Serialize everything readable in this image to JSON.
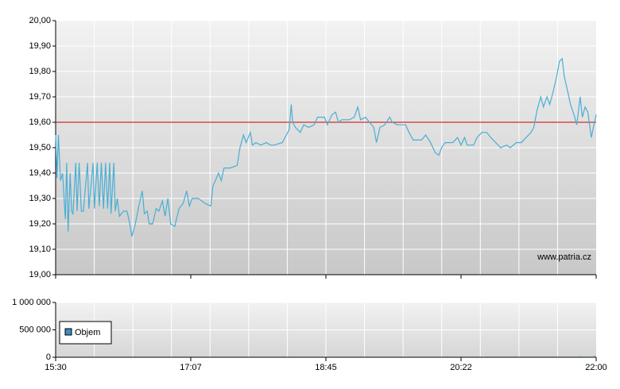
{
  "chart_data": [
    {
      "type": "line",
      "xlim": [
        930,
        1320
      ],
      "ylim": [
        19.0,
        20.0
      ],
      "yticks": [
        {
          "value": 19.0,
          "label": "19,00"
        },
        {
          "value": 19.1,
          "label": "19,10"
        },
        {
          "value": 19.2,
          "label": "19,20"
        },
        {
          "value": 19.3,
          "label": "19,30"
        },
        {
          "value": 19.4,
          "label": "19,40"
        },
        {
          "value": 19.5,
          "label": "19,50"
        },
        {
          "value": 19.6,
          "label": "19,60"
        },
        {
          "value": 19.7,
          "label": "19,70"
        },
        {
          "value": 19.8,
          "label": "19,80"
        },
        {
          "value": 19.9,
          "label": "19,90"
        },
        {
          "value": 20.0,
          "label": "20,00"
        }
      ],
      "xticks": [
        930,
        1027.5,
        1125,
        1222.5,
        1320
      ],
      "grid": true,
      "reference": 19.6,
      "reference_color": "#cc0000",
      "watermark": "www.patria.cz",
      "color": "#4aaed4",
      "x": [
        930,
        931,
        932,
        933.5,
        935,
        937,
        938,
        939,
        940.5,
        941.5,
        942.5,
        944.5,
        945.5,
        947,
        948.5,
        950,
        953,
        954,
        957,
        958,
        960,
        961.5,
        963,
        964.5,
        966,
        967.5,
        969,
        970,
        972,
        973,
        974.5,
        976,
        979,
        981.5,
        983.5,
        985,
        987.5,
        990,
        992.5,
        994,
        996,
        997.5,
        1000,
        1002.5,
        1004.5,
        1007,
        1009,
        1011,
        1013,
        1016,
        1019,
        1022,
        1024.5,
        1026.5,
        1028.5,
        1033,
        1038,
        1042,
        1043.5,
        1046,
        1047.5,
        1049.5,
        1051.5,
        1056,
        1061,
        1063,
        1065.5,
        1067.5,
        1070.5,
        1072,
        1074.5,
        1078,
        1082,
        1085,
        1087.5,
        1093.5,
        1096.5,
        1098.5,
        1100,
        1101,
        1103,
        1106.5,
        1109,
        1112.5,
        1116.5,
        1119,
        1124,
        1126,
        1129.5,
        1132,
        1134,
        1136.5,
        1142,
        1145.5,
        1148,
        1150,
        1153.5,
        1156.5,
        1159.5,
        1161.5,
        1164,
        1167.5,
        1171,
        1173,
        1176.5,
        1182.5,
        1185,
        1188,
        1194,
        1197,
        1200.5,
        1204,
        1206.5,
        1208.5,
        1211,
        1216.5,
        1220,
        1222.5,
        1225,
        1227,
        1231.5,
        1234,
        1237.5,
        1241,
        1244,
        1247.5,
        1251,
        1255.5,
        1258,
        1262.5,
        1266,
        1269.5,
        1273,
        1275,
        1277.5,
        1280,
        1282,
        1284.5,
        1286.5,
        1289,
        1291.5,
        1293.5,
        1295.5,
        1297,
        1299.5,
        1301.5,
        1304,
        1306,
        1308.5,
        1310,
        1312,
        1314,
        1316.5,
        1318,
        1320
      ],
      "values": [
        19.55,
        19.38,
        19.55,
        19.37,
        19.4,
        19.22,
        19.44,
        19.17,
        19.4,
        19.25,
        19.24,
        19.44,
        19.25,
        19.44,
        19.25,
        19.25,
        19.44,
        19.26,
        19.44,
        19.26,
        19.44,
        19.27,
        19.44,
        19.26,
        19.44,
        19.26,
        19.44,
        19.24,
        19.44,
        19.25,
        19.3,
        19.23,
        19.25,
        19.25,
        19.2,
        19.15,
        19.2,
        19.27,
        19.33,
        19.24,
        19.25,
        19.2,
        19.2,
        19.26,
        19.25,
        19.29,
        19.23,
        19.3,
        19.2,
        19.19,
        19.26,
        19.28,
        19.33,
        19.27,
        19.3,
        19.3,
        19.28,
        19.27,
        19.35,
        19.38,
        19.4,
        19.37,
        19.42,
        19.42,
        19.43,
        19.5,
        19.55,
        19.52,
        19.56,
        19.51,
        19.52,
        19.51,
        19.52,
        19.51,
        19.51,
        19.52,
        19.55,
        19.57,
        19.67,
        19.6,
        19.58,
        19.56,
        19.59,
        19.58,
        19.59,
        19.62,
        19.62,
        19.59,
        19.63,
        19.64,
        19.6,
        19.61,
        19.61,
        19.62,
        19.66,
        19.61,
        19.62,
        19.6,
        19.58,
        19.52,
        19.58,
        19.59,
        19.62,
        19.6,
        19.59,
        19.59,
        19.56,
        19.53,
        19.53,
        19.55,
        19.52,
        19.48,
        19.47,
        19.5,
        19.52,
        19.52,
        19.54,
        19.51,
        19.54,
        19.51,
        19.51,
        19.54,
        19.56,
        19.56,
        19.54,
        19.52,
        19.5,
        19.51,
        19.5,
        19.52,
        19.52,
        19.54,
        19.56,
        19.58,
        19.65,
        19.7,
        19.66,
        19.7,
        19.67,
        19.72,
        19.78,
        19.84,
        19.85,
        19.78,
        19.72,
        19.67,
        19.63,
        19.59,
        19.7,
        19.62,
        19.66,
        19.64,
        19.54,
        19.58,
        19.63
      ]
    },
    {
      "type": "bar",
      "xlim": [
        930,
        1320
      ],
      "ylim": [
        0,
        1000000
      ],
      "yticks": [
        0,
        {
          "value": 500000,
          "label": "500 000"
        },
        {
          "value": 1000000,
          "label": "1 000 000"
        }
      ],
      "xticks": [
        {
          "value": 930,
          "label": "15:30"
        },
        {
          "value": 1027.5,
          "label": "17:07"
        },
        {
          "value": 1125,
          "label": "18:45"
        },
        {
          "value": 1222.5,
          "label": "20:22"
        },
        {
          "value": 1320,
          "label": "22:00"
        }
      ],
      "grid": true,
      "series": [
        {
          "name": "Objem",
          "color": "#3a8fc4",
          "x": [
            1124,
            1128,
            1183,
            1239,
            1308,
            1316,
            1319
          ],
          "values": [
            5000,
            4000,
            6000,
            5000,
            20000,
            15000,
            25000
          ]
        }
      ]
    }
  ]
}
